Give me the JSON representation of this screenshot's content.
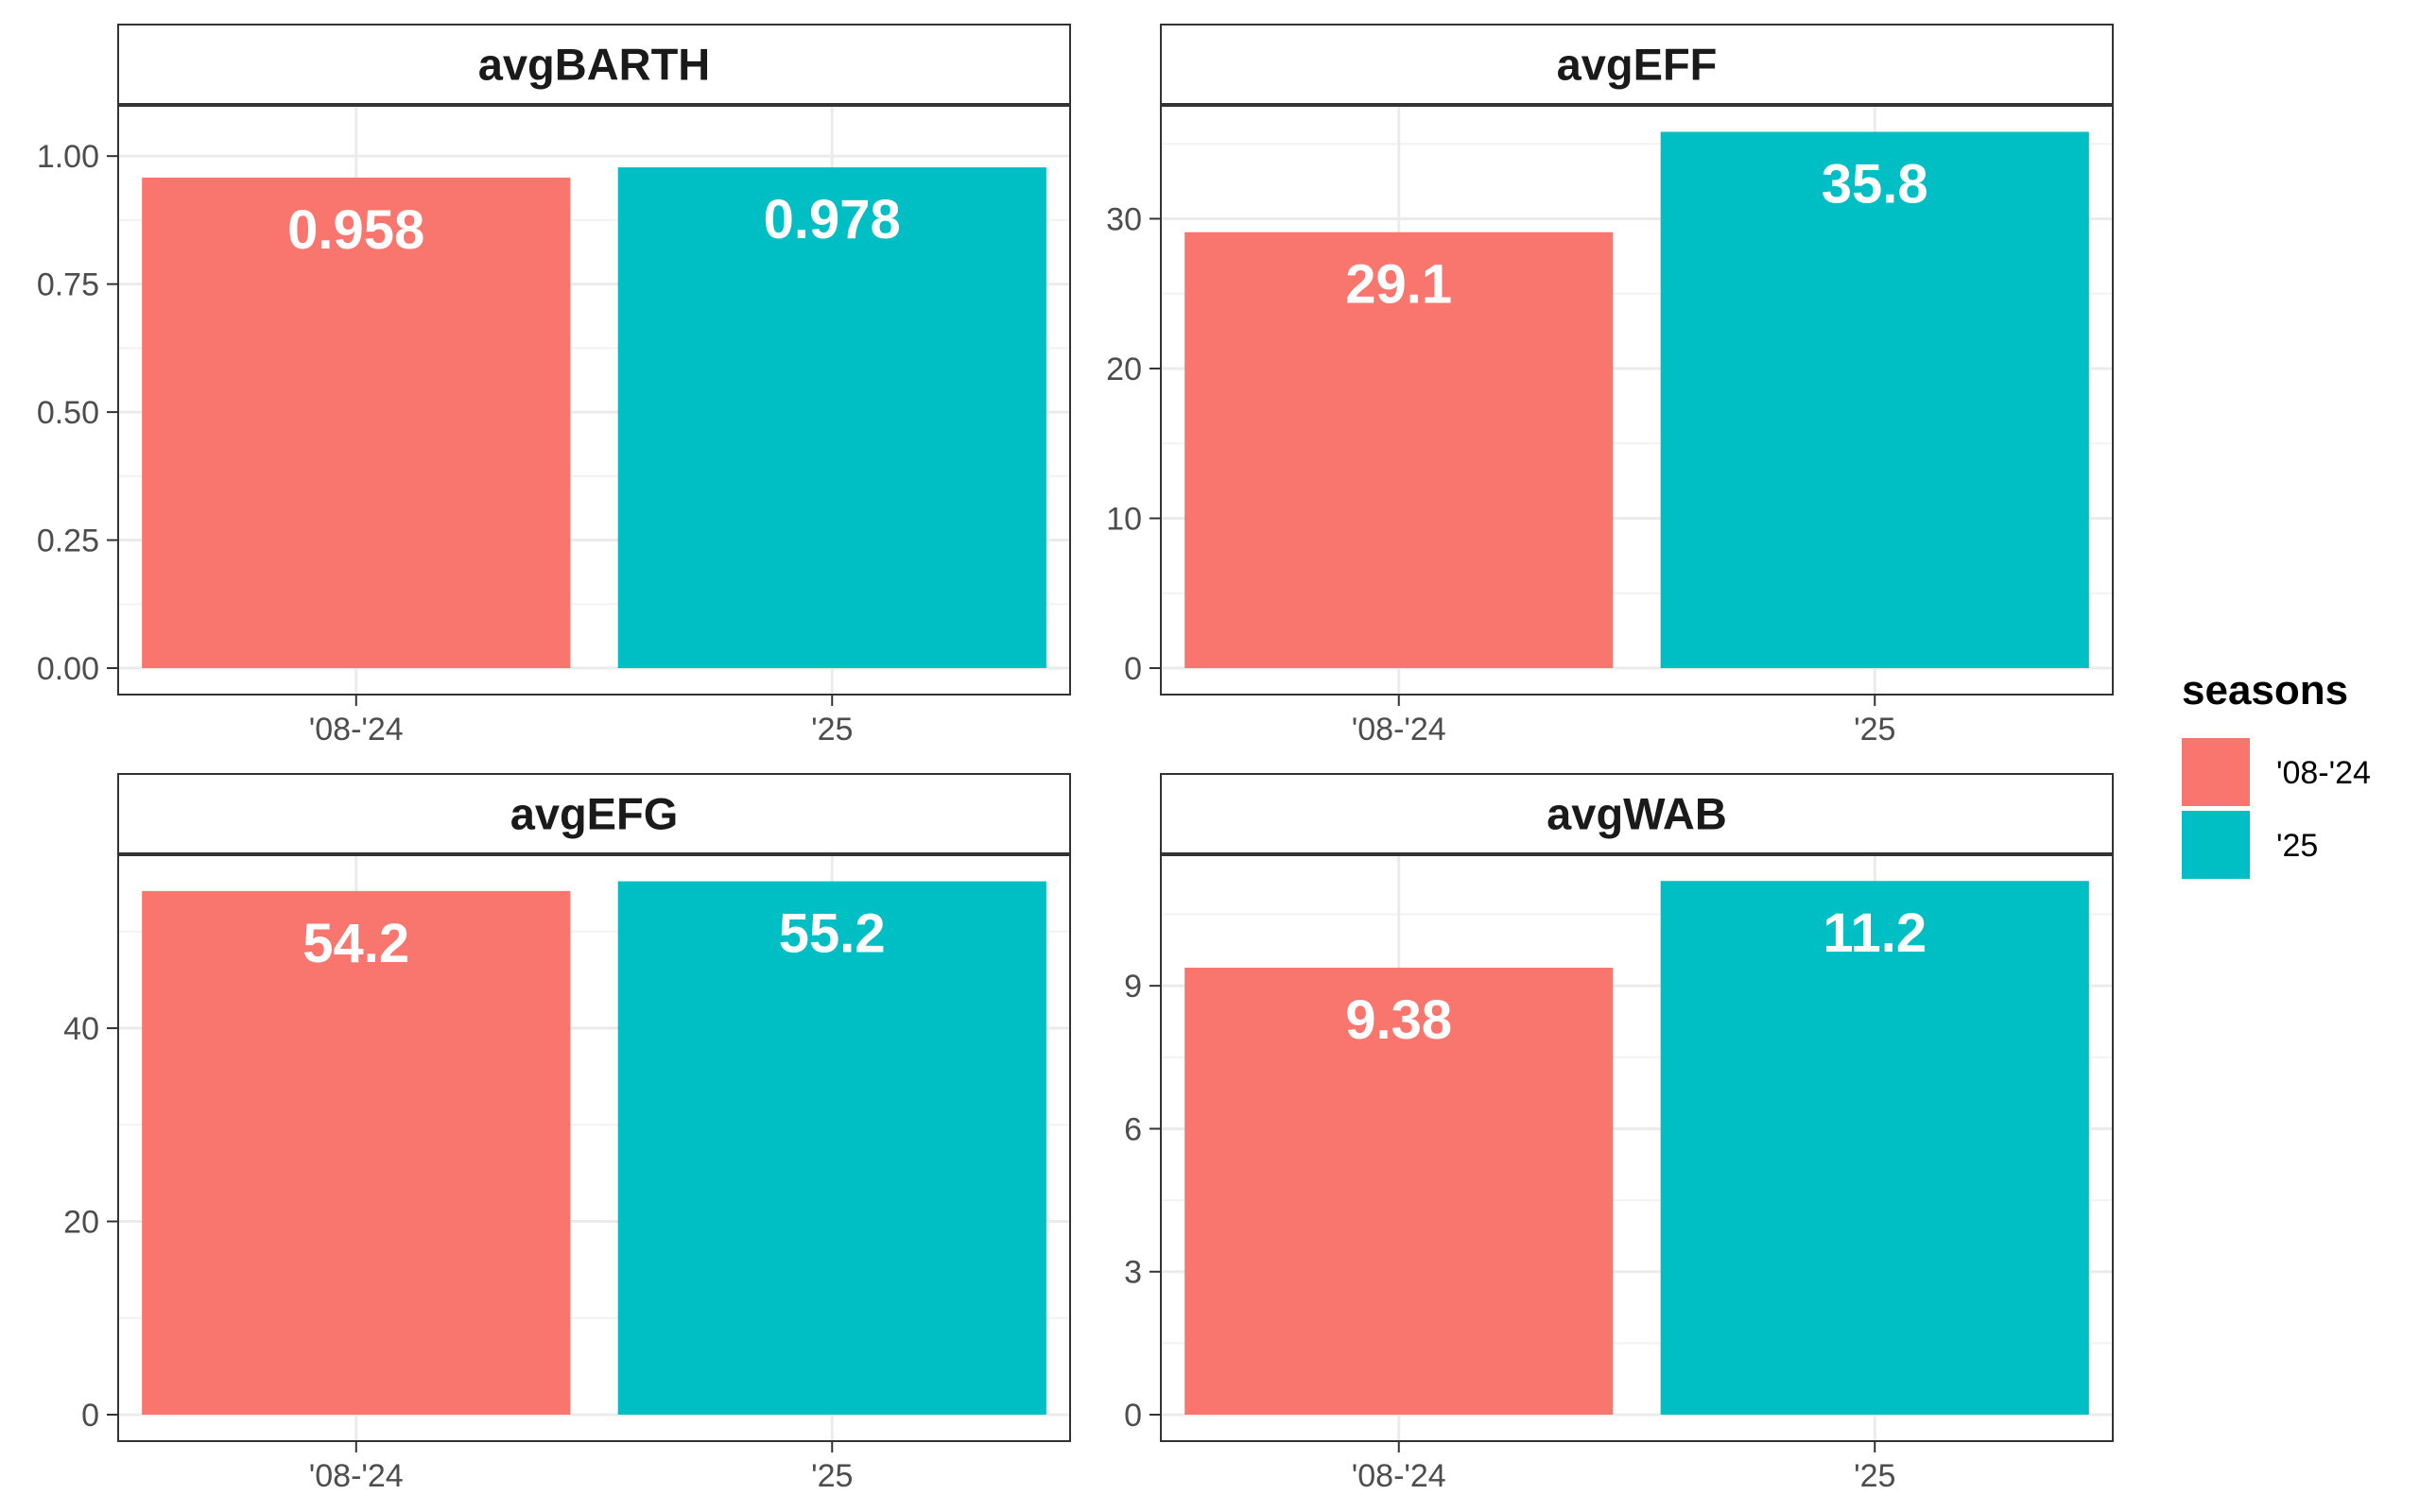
{
  "colors": {
    "series_0824": "#F8766D",
    "series_25": "#00BFC4",
    "panel_border": "#333333",
    "grid_major": "#EBEBEB",
    "grid_minor": "#F2F2F2"
  },
  "legend": {
    "title": "seasons",
    "items": [
      {
        "label": "'08-'24",
        "color": "#F8766D"
      },
      {
        "label": "'25",
        "color": "#00BFC4"
      }
    ]
  },
  "chart_data": [
    {
      "type": "bar",
      "title": "avgBARTH",
      "categories": [
        "'08-'24",
        "'25"
      ],
      "values": [
        0.958,
        0.978
      ],
      "labels": [
        "0.958",
        "0.978"
      ],
      "ylim": [
        0,
        1.1
      ],
      "yticks": [
        0,
        0.25,
        0.5,
        0.75,
        1.0
      ],
      "ytick_labels": [
        "0.00",
        "0.25",
        "0.50",
        "0.75",
        "1.00"
      ]
    },
    {
      "type": "bar",
      "title": "avgEFF",
      "categories": [
        "'08-'24",
        "'25"
      ],
      "values": [
        29.1,
        35.8
      ],
      "labels": [
        "29.1",
        "35.8"
      ],
      "ylim": [
        0,
        37.6
      ],
      "yticks": [
        0,
        10,
        20,
        30
      ],
      "ytick_labels": [
        "0",
        "10",
        "20",
        "30"
      ]
    },
    {
      "type": "bar",
      "title": "avgEFG",
      "categories": [
        "'08-'24",
        "'25"
      ],
      "values": [
        54.2,
        55.2
      ],
      "labels": [
        "54.2",
        "55.2"
      ],
      "ylim": [
        0,
        58.0
      ],
      "yticks": [
        0,
        20,
        40
      ],
      "ytick_labels": [
        "0",
        "20",
        "40"
      ]
    },
    {
      "type": "bar",
      "title": "avgWAB",
      "categories": [
        "'08-'24",
        "'25"
      ],
      "values": [
        9.38,
        11.2
      ],
      "labels": [
        "9.38",
        "11.2"
      ],
      "ylim": [
        0,
        11.76
      ],
      "yticks": [
        0,
        3,
        6,
        9
      ],
      "ytick_labels": [
        "0",
        "3",
        "6",
        "9"
      ]
    }
  ]
}
